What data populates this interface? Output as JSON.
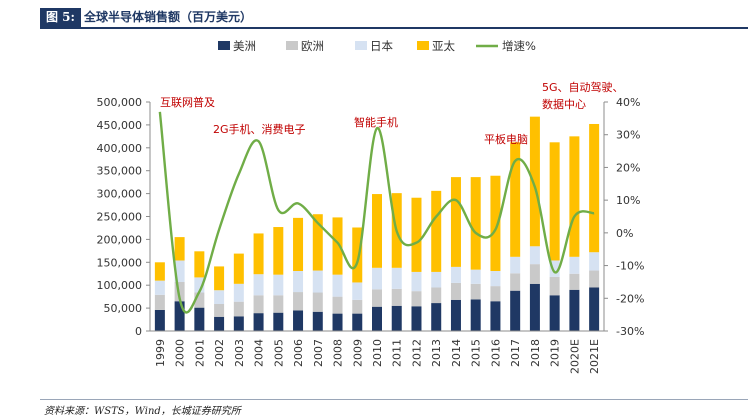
{
  "header": {
    "figure_label": "图 5:",
    "title": "全球半导体销售额（百万美元）"
  },
  "footer": {
    "source": "资料来源：WSTS，Wind，长城证券研究所"
  },
  "colors": {
    "americas": "#1f3864",
    "europe": "#c9c9c9",
    "japan": "#d6e2f2",
    "asia_pacific": "#ffc000",
    "growth": "#70ad47",
    "annotation": "#c00000"
  },
  "chart_data": {
    "type": "bar",
    "stacked": true,
    "title": "全球半导体销售额（百万美元）",
    "categories": [
      "1999",
      "2000",
      "2001",
      "2002",
      "2003",
      "2004",
      "2005",
      "2006",
      "2007",
      "2008",
      "2009",
      "2010",
      "2011",
      "2012",
      "2013",
      "2014",
      "2015",
      "2016",
      "2017",
      "2018",
      "2019",
      "2020E",
      "2021E"
    ],
    "series": [
      {
        "name": "美洲",
        "color": "#1f3864",
        "values": [
          46000,
          65000,
          51000,
          31000,
          32000,
          39000,
          40000,
          45000,
          42000,
          38000,
          38000,
          53000,
          55000,
          54000,
          61000,
          68000,
          69000,
          65000,
          88000,
          103000,
          78000,
          90000,
          95000
        ]
      },
      {
        "name": "欧洲",
        "color": "#c9c9c9",
        "values": [
          33000,
          42000,
          33000,
          28000,
          32000,
          39000,
          38000,
          40000,
          42000,
          37000,
          30000,
          38000,
          37000,
          33000,
          34000,
          37000,
          34000,
          33000,
          38000,
          43000,
          40000,
          35000,
          37000
        ]
      },
      {
        "name": "日本",
        "color": "#d6e2f2",
        "values": [
          31000,
          47000,
          33000,
          30000,
          39000,
          46000,
          45000,
          46000,
          48000,
          48000,
          38000,
          47000,
          46000,
          42000,
          34000,
          35000,
          31000,
          33000,
          36000,
          39000,
          36000,
          37000,
          40000
        ]
      },
      {
        "name": "亚太",
        "color": "#ffc000",
        "values": [
          40000,
          51000,
          57000,
          52000,
          66000,
          89000,
          104000,
          116000,
          123000,
          125000,
          120000,
          161000,
          163000,
          162000,
          177000,
          196000,
          202000,
          208000,
          250000,
          283000,
          258000,
          263000,
          280000
        ]
      }
    ],
    "growth": {
      "name": "增速%",
      "color": "#70ad47",
      "values": [
        37,
        -20,
        -18,
        1,
        18,
        28,
        7,
        9,
        3,
        -3,
        -9,
        32,
        0.5,
        -3,
        5,
        10,
        0,
        1,
        22,
        14,
        -12,
        5,
        6
      ]
    },
    "y_left": {
      "min": 0,
      "max": 500000,
      "step": 50000,
      "ticks": [
        "0",
        "50,000",
        "100,000",
        "150,000",
        "200,000",
        "250,000",
        "300,000",
        "350,000",
        "400,000",
        "450,000",
        "500,000"
      ]
    },
    "y_right": {
      "min": -30,
      "max": 40,
      "step": 10,
      "ticks": [
        "-30%",
        "-20%",
        "-10%",
        "0%",
        "10%",
        "20%",
        "30%",
        "40%"
      ]
    },
    "legend": {
      "position": "top",
      "items": [
        "美洲",
        "欧洲",
        "日本",
        "亚太",
        "增速%"
      ]
    },
    "annotations": [
      {
        "text": "互联网普及",
        "category": "2000"
      },
      {
        "text": "2G手机、消费电子",
        "category": "2004"
      },
      {
        "text": "智能手机",
        "category": "2010"
      },
      {
        "text": "平板电脑",
        "category": "2017"
      },
      {
        "text": "5G、自动驾驶、",
        "category": "2020E"
      },
      {
        "text": "数据中心",
        "category": "2020E"
      }
    ],
    "grid": false
  }
}
